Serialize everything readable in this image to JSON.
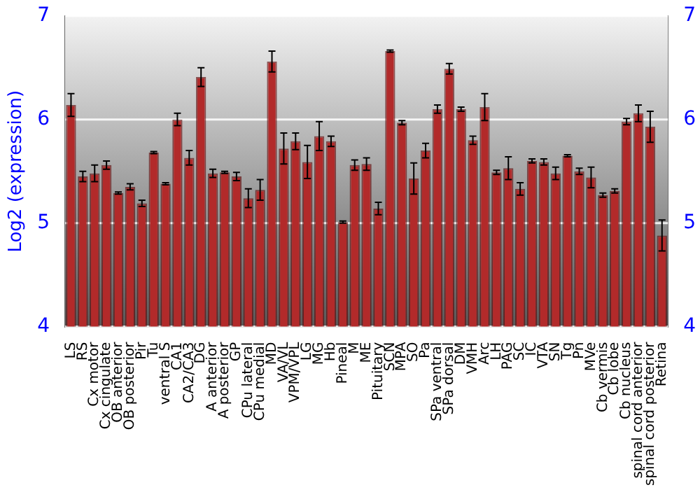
{
  "chart_data": {
    "type": "bar",
    "ylabel": "Log2 (expression)",
    "categories": [
      "LS",
      "RS",
      "Cx motor",
      "Cx cingulate",
      "OB anterior",
      "OB posterior",
      "Pir",
      "Tu",
      "ventral S",
      "CA1",
      "CA2/CA3",
      "DG",
      "A anterior",
      "A posterior",
      "GP",
      "CPu lateral",
      "CPu medial",
      "MD",
      "VA/VL",
      "VPM/VPL",
      "LG",
      "MG",
      "Hb",
      "Pineal",
      "M",
      "ME",
      "Pituitary",
      "SCN",
      "MPA",
      "SO",
      "Pa",
      "SPa ventral",
      "SPa dorsal",
      "DM",
      "VMH",
      "Arc",
      "LH",
      "PAG",
      "SC",
      "IC",
      "VTA",
      "SN",
      "Tg",
      "Pn",
      "MVe",
      "Cb vermis",
      "Cb lobe",
      "Cb nucleus",
      "spinal cord anterior",
      "spinal cord posterior",
      "Retina"
    ],
    "values": [
      6.14,
      5.45,
      5.48,
      5.56,
      5.29,
      5.35,
      5.19,
      5.68,
      5.38,
      6.0,
      5.63,
      6.41,
      5.48,
      5.49,
      5.45,
      5.24,
      5.32,
      6.56,
      5.72,
      5.79,
      5.59,
      5.84,
      5.79,
      5.01,
      5.56,
      5.57,
      5.14,
      6.66,
      5.97,
      5.43,
      5.7,
      6.1,
      6.49,
      6.1,
      5.8,
      6.12,
      5.49,
      5.53,
      5.33,
      5.6,
      5.59,
      5.48,
      5.65,
      5.5,
      5.44,
      5.27,
      5.31,
      5.98,
      6.06,
      5.93,
      4.88
    ],
    "errors": [
      0.11,
      0.05,
      0.08,
      0.04,
      0.01,
      0.03,
      0.03,
      0.01,
      0.01,
      0.06,
      0.07,
      0.09,
      0.04,
      0.01,
      0.04,
      0.09,
      0.1,
      0.1,
      0.15,
      0.08,
      0.16,
      0.14,
      0.05,
      0.01,
      0.05,
      0.06,
      0.06,
      0.01,
      0.02,
      0.15,
      0.07,
      0.04,
      0.05,
      0.02,
      0.04,
      0.13,
      0.02,
      0.11,
      0.06,
      0.02,
      0.03,
      0.06,
      0.01,
      0.03,
      0.1,
      0.02,
      0.02,
      0.03,
      0.08,
      0.15,
      0.15
    ],
    "color": "#b22a2a",
    "ylim": [
      4,
      7
    ],
    "yticks": [
      4,
      5,
      6,
      7
    ],
    "y2lim": [
      4,
      7
    ],
    "y2ticks": [
      4,
      5,
      6,
      7
    ],
    "grid": "y",
    "legend": false
  }
}
